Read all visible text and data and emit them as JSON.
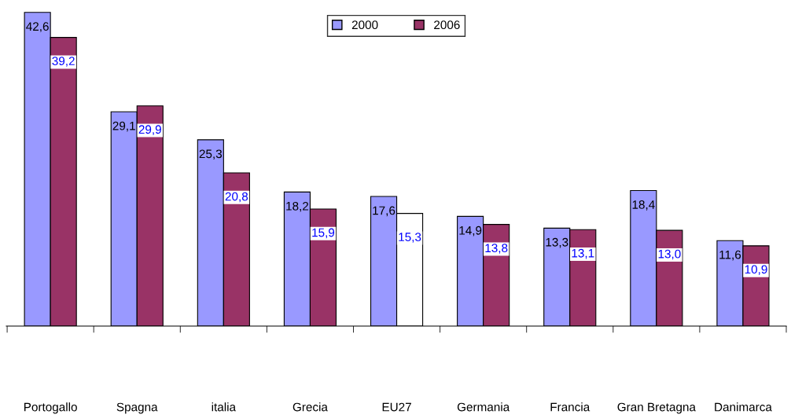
{
  "chart_data": {
    "type": "bar",
    "categories": [
      "Portogallo",
      "Spagna",
      "italia",
      "Grecia",
      "EU27",
      "Germania",
      "Francia",
      "Gran Bretagna",
      "Danimarca"
    ],
    "series": [
      {
        "name": "2000",
        "color": "#9999ff",
        "values": [
          42.6,
          29.1,
          25.3,
          18.2,
          17.6,
          14.9,
          13.3,
          18.4,
          11.6
        ],
        "value_labels": [
          "42,6",
          "29,1",
          "25,3",
          "18,2",
          "17,6",
          "14,9",
          "13,3",
          "18,4",
          "11,6"
        ]
      },
      {
        "name": "2006",
        "color": "#993366",
        "colors": [
          "#993366",
          "#993366",
          "#993366",
          "#993366",
          "#ffffff",
          "#993366",
          "#993366",
          "#993366",
          "#993366"
        ],
        "values": [
          39.2,
          29.9,
          20.8,
          15.9,
          15.3,
          13.8,
          13.1,
          13.0,
          10.9
        ],
        "value_labels": [
          "39,2",
          "29,9",
          "20,8",
          "15,9",
          "15,3",
          "13,8",
          "13,1",
          "13,0",
          "10,9"
        ]
      }
    ],
    "ylim": [
      0,
      43
    ],
    "tick_labels": "x",
    "legend": "top",
    "grid": false
  }
}
